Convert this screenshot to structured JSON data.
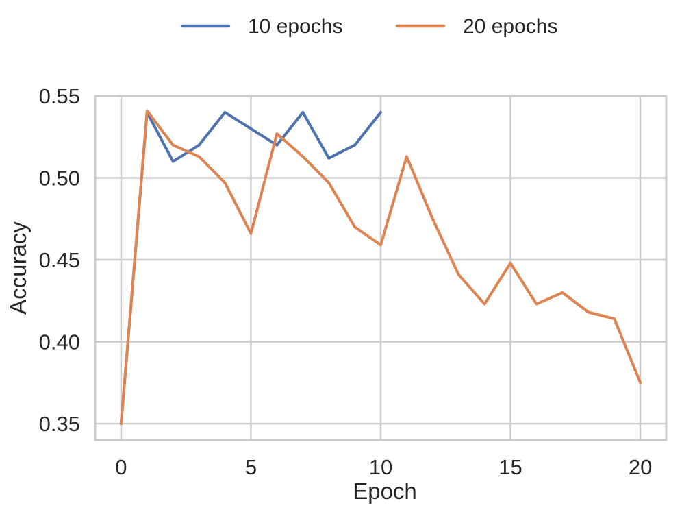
{
  "chart_data": {
    "type": "line",
    "title": "",
    "xlabel": "Epoch",
    "ylabel": "Accuracy",
    "xlim": [
      -1,
      21
    ],
    "ylim": [
      0.34,
      0.55
    ],
    "xticks": [
      0,
      5,
      10,
      15,
      20
    ],
    "xtick_labels": [
      "0",
      "5",
      "10",
      "15",
      "20"
    ],
    "yticks": [
      0.35,
      0.4,
      0.45,
      0.5,
      0.55
    ],
    "ytick_labels": [
      "0.35",
      "0.40",
      "0.45",
      "0.50",
      "0.55"
    ],
    "grid": true,
    "legend_position": "top-center",
    "series": [
      {
        "name": "10 epochs",
        "color": "#4c72b0",
        "x": [
          0,
          1,
          2,
          3,
          4,
          5,
          6,
          7,
          8,
          9,
          10
        ],
        "y": [
          0.35,
          0.54,
          0.51,
          0.52,
          0.54,
          0.53,
          0.52,
          0.54,
          0.512,
          0.52,
          0.54
        ]
      },
      {
        "name": "20 epochs",
        "color": "#dd8452",
        "x": [
          0,
          1,
          2,
          3,
          4,
          5,
          6,
          7,
          8,
          9,
          10,
          11,
          12,
          13,
          14,
          15,
          16,
          17,
          18,
          19,
          20
        ],
        "y": [
          0.35,
          0.541,
          0.52,
          0.513,
          0.497,
          0.466,
          0.527,
          0.513,
          0.497,
          0.47,
          0.459,
          0.513,
          0.475,
          0.441,
          0.423,
          0.448,
          0.423,
          0.43,
          0.418,
          0.414,
          0.375
        ]
      }
    ]
  }
}
